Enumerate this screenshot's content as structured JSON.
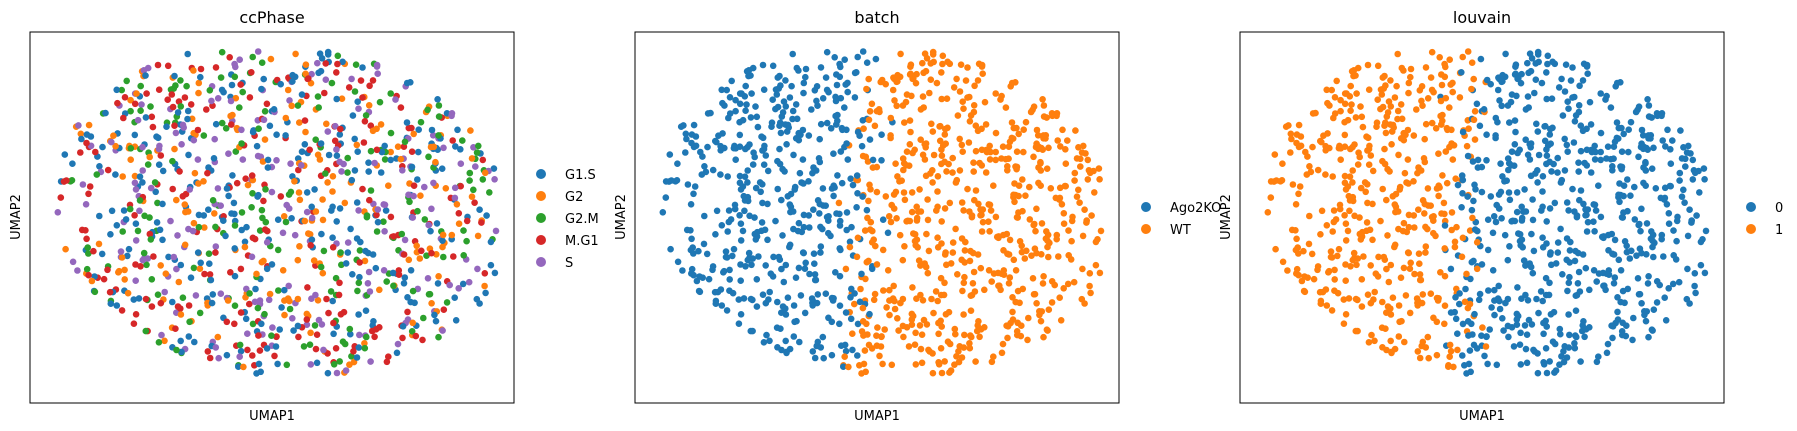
{
  "figure": {
    "panels": [
      {
        "title": "ccPhase",
        "xlabel": "UMAP1",
        "ylabel": "UMAP2",
        "legend": [
          {
            "label": "G1.S",
            "color": "#1f77b4"
          },
          {
            "label": "G2",
            "color": "#ff7f0e"
          },
          {
            "label": "G2.M",
            "color": "#2ca02c"
          },
          {
            "label": "M.G1",
            "color": "#d62728"
          },
          {
            "label": "S",
            "color": "#9467bd"
          }
        ]
      },
      {
        "title": "batch",
        "xlabel": "UMAP1",
        "ylabel": "UMAP2",
        "legend": [
          {
            "label": "Ago2KO",
            "color": "#1f77b4"
          },
          {
            "label": "WT",
            "color": "#ff7f0e"
          }
        ]
      },
      {
        "title": "louvain",
        "xlabel": "UMAP1",
        "ylabel": "UMAP2",
        "legend": [
          {
            "label": "0",
            "color": "#1f77b4"
          },
          {
            "label": "1",
            "color": "#ff7f0e"
          }
        ]
      }
    ]
  },
  "chart_data": [
    {
      "type": "scatter",
      "title": "ccPhase",
      "xlabel": "UMAP1",
      "ylabel": "UMAP2",
      "x_ticks": "none",
      "y_ticks": "none",
      "grid": false,
      "legend_position": "right",
      "series": [
        {
          "name": "G1.S",
          "color": "#1f77b4",
          "values": []
        },
        {
          "name": "G2",
          "color": "#ff7f0e",
          "values": []
        },
        {
          "name": "G2.M",
          "color": "#2ca02c",
          "values": []
        },
        {
          "name": "M.G1",
          "color": "#d62728",
          "values": []
        },
        {
          "name": "S",
          "color": "#9467bd",
          "values": []
        }
      ]
    },
    {
      "type": "scatter",
      "title": "batch",
      "xlabel": "UMAP1",
      "ylabel": "UMAP2",
      "x_ticks": "none",
      "y_ticks": "none",
      "grid": false,
      "legend_position": "right",
      "series": [
        {
          "name": "Ago2KO",
          "color": "#1f77b4",
          "values": []
        },
        {
          "name": "WT",
          "color": "#ff7f0e",
          "values": []
        }
      ]
    },
    {
      "type": "scatter",
      "title": "louvain",
      "xlabel": "UMAP1",
      "ylabel": "UMAP2",
      "x_ticks": "none",
      "y_ticks": "none",
      "grid": false,
      "legend_position": "right",
      "series": [
        {
          "name": "0",
          "color": "#1f77b4",
          "values": []
        },
        {
          "name": "1",
          "color": "#ff7f0e",
          "values": []
        }
      ]
    }
  ]
}
